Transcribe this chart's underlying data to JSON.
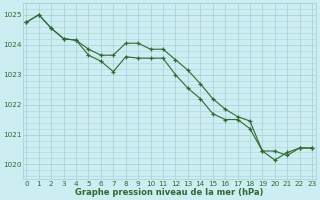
{
  "title": "Graphe pression niveau de la mer (hPa)",
  "background_color": "#cceef2",
  "grid_color": "#aad4d8",
  "line_color": "#2d6a2d",
  "ylim": [
    1019.5,
    1025.4
  ],
  "xlim": [
    -0.3,
    23.3
  ],
  "yticks": [
    1020,
    1021,
    1022,
    1023,
    1024,
    1025
  ],
  "xticks": [
    0,
    1,
    2,
    3,
    4,
    5,
    6,
    7,
    8,
    9,
    10,
    11,
    12,
    13,
    14,
    15,
    16,
    17,
    18,
    19,
    20,
    21,
    22,
    23
  ],
  "series1": [
    1024.75,
    1025.0,
    1024.55,
    1024.2,
    1024.15,
    1023.85,
    1023.65,
    1023.65,
    1024.05,
    1024.05,
    1023.85,
    1023.85,
    1023.5,
    1023.15,
    1022.7,
    1022.2,
    1021.85,
    1021.6,
    1021.45,
    1020.45,
    1020.45,
    1020.3,
    1020.55,
    1020.55
  ],
  "series2": [
    1024.75,
    1025.0,
    1024.55,
    1024.2,
    1024.15,
    1023.65,
    1023.45,
    1023.1,
    1023.6,
    1023.55,
    1023.55,
    1023.55,
    1023.0,
    1022.55,
    1022.2,
    1021.7,
    1021.5,
    1021.5,
    1021.2,
    1020.45,
    1020.15,
    1020.4,
    1020.55,
    1020.55
  ],
  "font_color": "#2d6a2d",
  "title_fontsize": 6.0,
  "tick_fontsize": 5.2
}
